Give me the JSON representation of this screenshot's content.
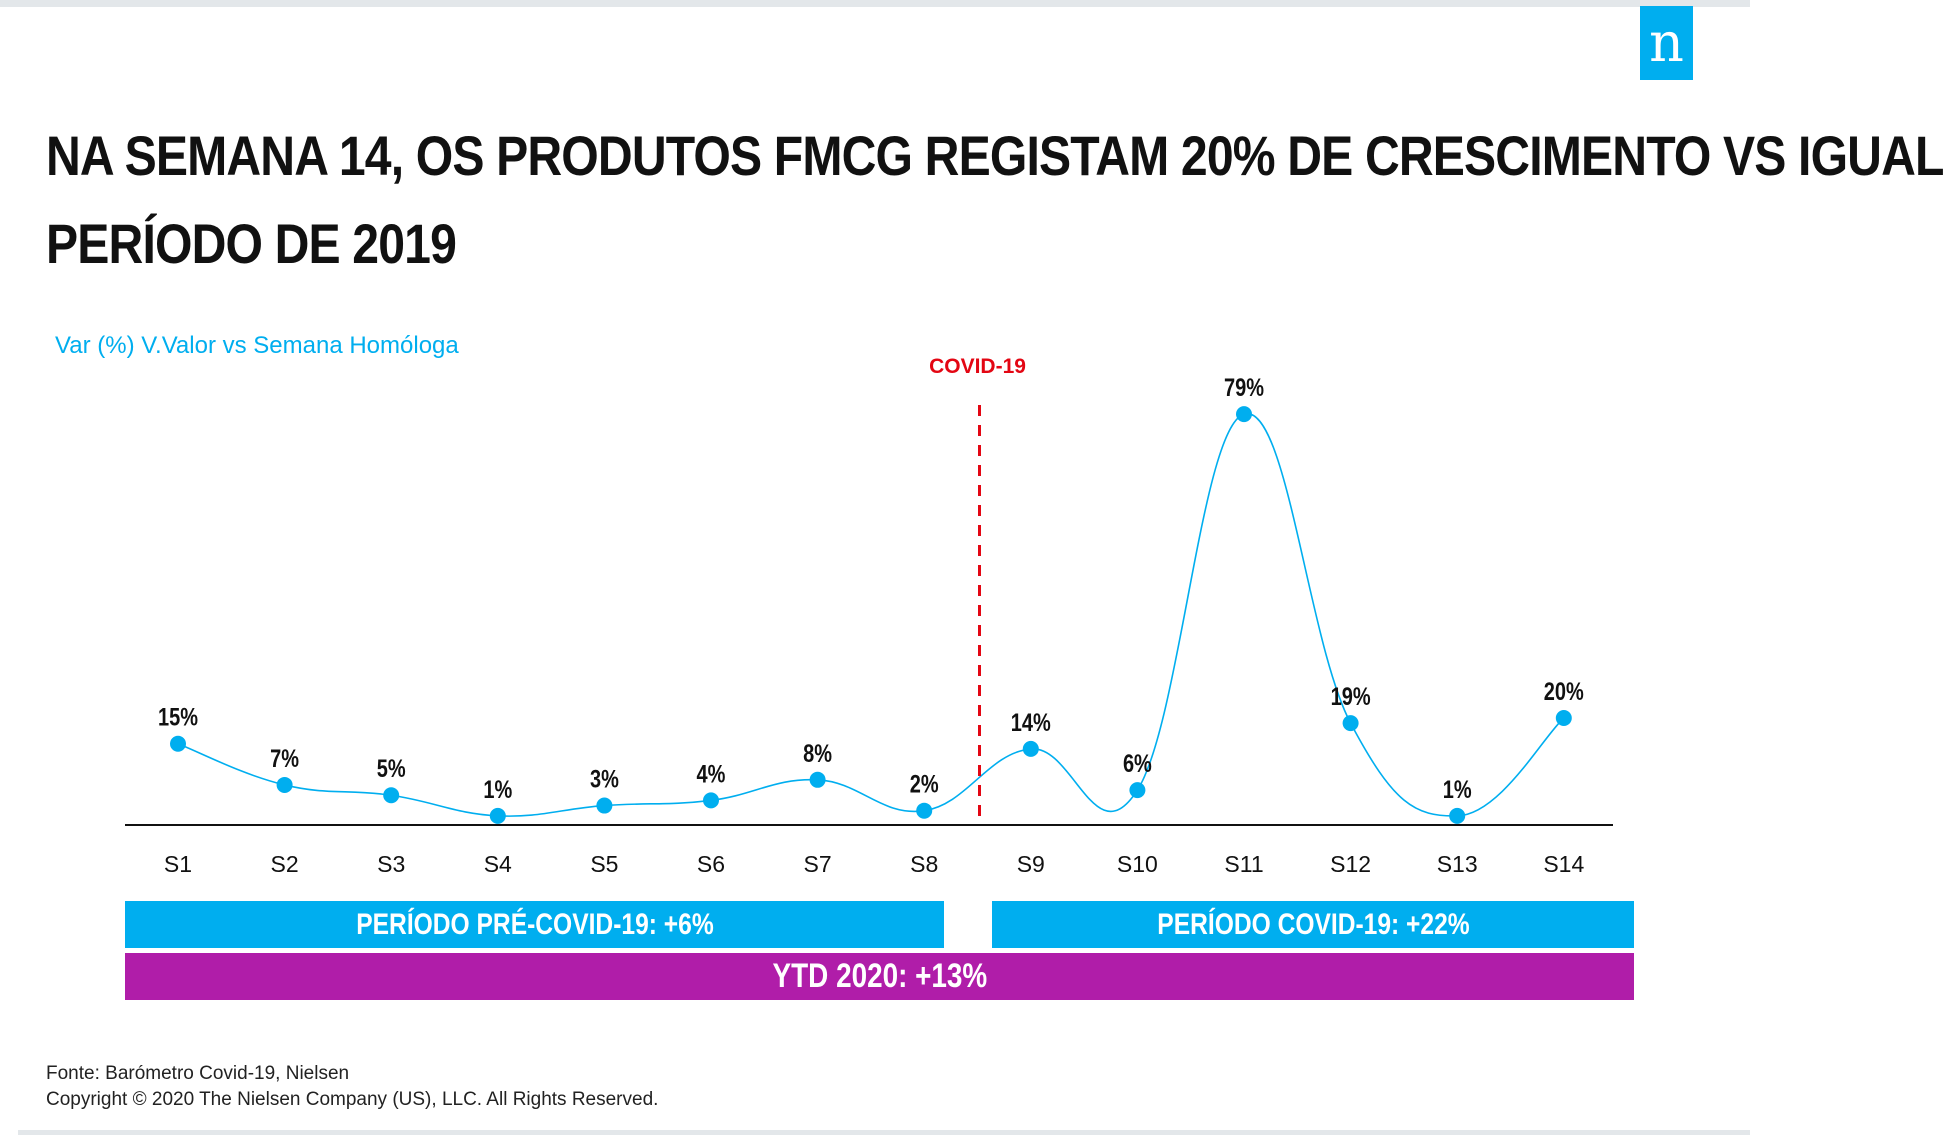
{
  "brand": {
    "logo_letter": "n",
    "accent_color": "#00aeef",
    "ytd_color": "#b01da9",
    "marker_color": "#e30613"
  },
  "header": {
    "title_line1": "NA SEMANA 14, OS PRODUTOS FMCG REGISTAM 20% DE CRESCIMENTO VS IGUAL",
    "title_line2": "PERÍODO DE 2019"
  },
  "chart_data": {
    "type": "line",
    "title": "",
    "subtitle": "Var (%) V.Valor vs Semana Homóloga",
    "categories": [
      "S1",
      "S2",
      "S3",
      "S4",
      "S5",
      "S6",
      "S7",
      "S8",
      "S9",
      "S10",
      "S11",
      "S12",
      "S13",
      "S14"
    ],
    "values": [
      15,
      7,
      5,
      1,
      3,
      4,
      8,
      2,
      14,
      6,
      79,
      19,
      1,
      20
    ],
    "value_labels": [
      "15%",
      "7%",
      "5%",
      "1%",
      "3%",
      "4%",
      "8%",
      "2%",
      "14%",
      "6%",
      "79%",
      "19%",
      "1%",
      "20%"
    ],
    "ylim": [
      0,
      80
    ],
    "line_style": "smooth",
    "grid": false,
    "marker": {
      "label": "COVID-19",
      "between": [
        "S8",
        "S9"
      ],
      "style": "dashed"
    }
  },
  "bands": {
    "pre_covid": "PERÍODO PRÉ-COVID-19: +6%",
    "covid": "PERÍODO COVID-19: +22%",
    "ytd": "YTD 2020: +13%"
  },
  "footer": {
    "source": "Fonte: Barómetro Covid-19, Nielsen",
    "copyright": "Copyright © 2020 The Nielsen Company (US), LLC. All Rights Reserved."
  }
}
